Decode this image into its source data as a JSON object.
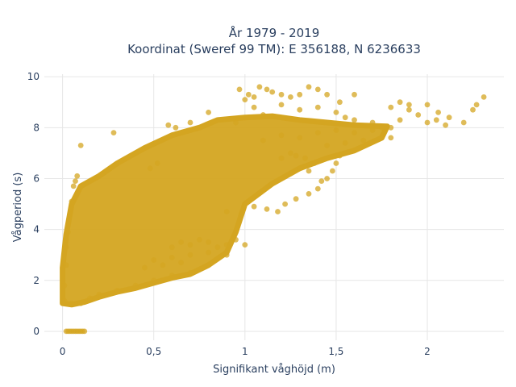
{
  "chart_data": {
    "type": "scatter",
    "title_line1": "År 1979 - 2019",
    "title_line2": "Koordinat (Sweref 99 TM): E 356188, N 6236633",
    "xlabel": "Signifikant våghöjd (m)",
    "ylabel": "Vågperiod (s)",
    "xlim": [
      -0.1,
      2.42
    ],
    "ylim": [
      -0.35,
      10.1
    ],
    "x_ticks": [
      0,
      0.5,
      1,
      1.5,
      2
    ],
    "x_tick_labels": [
      "0",
      "0,5",
      "1",
      "1,5",
      "2"
    ],
    "y_ticks": [
      0,
      2,
      4,
      6,
      8,
      10
    ],
    "y_tick_labels": [
      "0",
      "2",
      "4",
      "6",
      "8",
      "10"
    ],
    "grid": true,
    "legend": "none",
    "marker_color": "#d4a521",
    "marker_opacity": 0.75,
    "series": [
      {
        "name": "",
        "points": [
          [
            0.02,
            0.0
          ],
          [
            0.03,
            0.0
          ],
          [
            0.04,
            0.0
          ],
          [
            0.05,
            0.0
          ],
          [
            0.06,
            0.0
          ],
          [
            0.07,
            0.0
          ],
          [
            0.08,
            0.0
          ],
          [
            0.09,
            0.0
          ],
          [
            0.1,
            0.0
          ],
          [
            0.11,
            0.0
          ],
          [
            0.12,
            0.0
          ],
          [
            0.01,
            1.2
          ],
          [
            0.01,
            1.8
          ],
          [
            0.02,
            2.6
          ],
          [
            0.02,
            3.3
          ],
          [
            0.02,
            3.6
          ],
          [
            0.03,
            3.9
          ],
          [
            0.04,
            4.6
          ],
          [
            0.05,
            5.1
          ],
          [
            0.06,
            5.7
          ],
          [
            0.07,
            5.9
          ],
          [
            0.08,
            6.1
          ],
          [
            0.05,
            1.1
          ],
          [
            0.1,
            1.1
          ],
          [
            0.15,
            1.3
          ],
          [
            0.2,
            1.45
          ],
          [
            0.3,
            1.6
          ],
          [
            0.4,
            1.8
          ],
          [
            0.5,
            2.0
          ],
          [
            0.6,
            2.2
          ],
          [
            0.7,
            2.3
          ],
          [
            0.8,
            2.6
          ],
          [
            0.9,
            3.0
          ],
          [
            1.0,
            3.4
          ],
          [
            0.1,
            7.3
          ],
          [
            0.28,
            7.8
          ],
          [
            0.48,
            6.4
          ],
          [
            0.52,
            6.6
          ],
          [
            0.58,
            8.1
          ],
          [
            0.62,
            8.0
          ],
          [
            0.7,
            8.2
          ],
          [
            0.8,
            8.6
          ],
          [
            0.95,
            8.2
          ],
          [
            1.05,
            8.8
          ],
          [
            1.1,
            8.5
          ],
          [
            0.97,
            9.5
          ],
          [
            1.0,
            9.1
          ],
          [
            1.02,
            9.3
          ],
          [
            1.05,
            9.2
          ],
          [
            1.08,
            9.6
          ],
          [
            1.12,
            9.5
          ],
          [
            1.15,
            9.4
          ],
          [
            1.2,
            9.3
          ],
          [
            1.25,
            9.2
          ],
          [
            1.3,
            9.3
          ],
          [
            1.35,
            9.6
          ],
          [
            1.4,
            9.5
          ],
          [
            1.45,
            9.3
          ],
          [
            1.52,
            9.0
          ],
          [
            1.6,
            9.3
          ],
          [
            1.2,
            8.9
          ],
          [
            1.3,
            8.7
          ],
          [
            1.4,
            8.8
          ],
          [
            1.5,
            8.6
          ],
          [
            1.55,
            8.4
          ],
          [
            1.6,
            8.3
          ],
          [
            1.7,
            8.2
          ],
          [
            1.8,
            8.0
          ],
          [
            1.85,
            8.3
          ],
          [
            1.9,
            8.7
          ],
          [
            1.95,
            8.5
          ],
          [
            2.0,
            8.2
          ],
          [
            2.05,
            8.3
          ],
          [
            2.1,
            8.1
          ],
          [
            1.8,
            8.8
          ],
          [
            1.85,
            9.0
          ],
          [
            1.9,
            8.9
          ],
          [
            2.0,
            8.9
          ],
          [
            2.06,
            8.6
          ],
          [
            2.12,
            8.4
          ],
          [
            2.2,
            8.2
          ],
          [
            2.25,
            8.7
          ],
          [
            2.31,
            9.2
          ],
          [
            2.27,
            8.9
          ],
          [
            1.1,
            7.5
          ],
          [
            1.2,
            7.7
          ],
          [
            1.3,
            7.6
          ],
          [
            1.4,
            7.8
          ],
          [
            1.5,
            7.9
          ],
          [
            1.6,
            7.8
          ],
          [
            1.7,
            7.9
          ],
          [
            1.75,
            8.0
          ],
          [
            1.8,
            7.6
          ],
          [
            1.65,
            7.5
          ],
          [
            1.55,
            7.4
          ],
          [
            1.45,
            7.3
          ],
          [
            0.9,
            4.7
          ],
          [
            0.98,
            4.6
          ],
          [
            1.05,
            4.9
          ],
          [
            1.12,
            4.8
          ],
          [
            1.18,
            4.7
          ],
          [
            1.22,
            5.0
          ],
          [
            1.28,
            5.2
          ],
          [
            1.35,
            5.4
          ],
          [
            1.4,
            5.6
          ],
          [
            1.42,
            5.9
          ],
          [
            1.45,
            6.0
          ],
          [
            1.48,
            6.3
          ],
          [
            1.5,
            6.6
          ],
          [
            1.52,
            6.9
          ],
          [
            1.25,
            6.2
          ],
          [
            1.3,
            6.4
          ],
          [
            1.35,
            6.3
          ],
          [
            1.38,
            6.6
          ],
          [
            1.33,
            6.8
          ],
          [
            1.28,
            6.9
          ],
          [
            1.25,
            7.0
          ],
          [
            1.2,
            6.8
          ],
          [
            0.6,
            3.3
          ],
          [
            0.7,
            3.4
          ],
          [
            0.8,
            3.5
          ],
          [
            0.9,
            3.4
          ],
          [
            0.95,
            3.6
          ],
          [
            0.85,
            3.3
          ],
          [
            0.75,
            3.6
          ],
          [
            0.65,
            3.5
          ],
          [
            0.5,
            2.8
          ],
          [
            0.6,
            2.9
          ],
          [
            0.7,
            3.0
          ],
          [
            0.8,
            3.1
          ],
          [
            0.55,
            2.6
          ],
          [
            0.65,
            2.7
          ],
          [
            0.45,
            2.5
          ]
        ]
      }
    ]
  }
}
